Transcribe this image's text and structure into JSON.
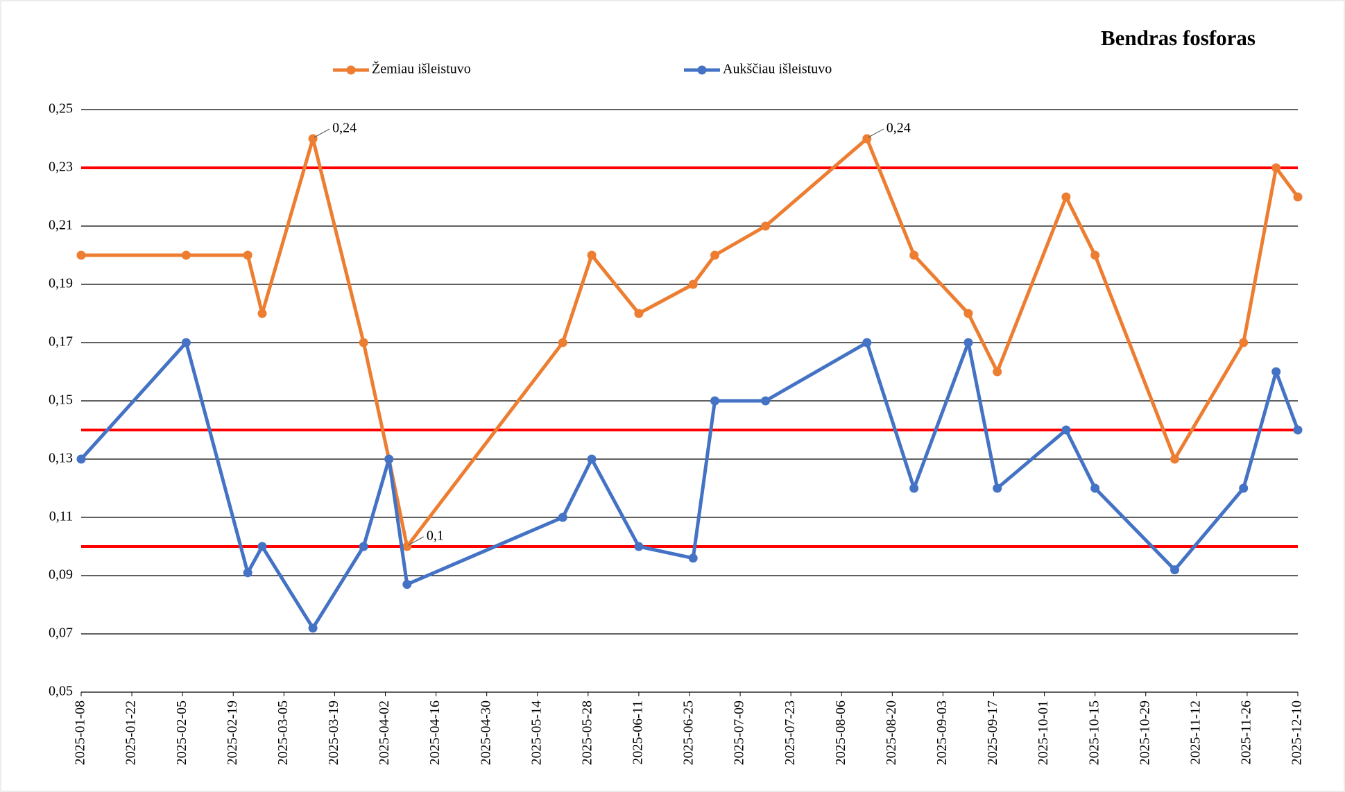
{
  "chart_data": {
    "type": "line",
    "title": "Bendras fosforas",
    "x": [
      "2025-01-08",
      "2025-02-06",
      "2025-02-23",
      "2025-02-27",
      "2025-03-13",
      "2025-03-27",
      "2025-04-03",
      "2025-04-08",
      "2025-05-21",
      "2025-05-29",
      "2025-06-11",
      "2025-06-26",
      "2025-07-02",
      "2025-07-16",
      "2025-08-13",
      "2025-08-26",
      "2025-09-10",
      "2025-09-18",
      "2025-10-07",
      "2025-10-15",
      "2025-11-06",
      "2025-11-25",
      "2025-12-04",
      "2025-12-10"
    ],
    "series": [
      {
        "name": "Žemiau išleistuvo",
        "color": "#ed7d31",
        "values": [
          0.2,
          0.2,
          0.2,
          0.18,
          0.24,
          0.17,
          0.13,
          0.1,
          0.17,
          0.2,
          0.18,
          0.19,
          0.2,
          0.21,
          0.24,
          0.2,
          0.18,
          0.16,
          0.22,
          0.2,
          0.13,
          0.17,
          0.23,
          0.22
        ],
        "value_labels": [
          null,
          null,
          null,
          null,
          "0,24",
          null,
          null,
          "0,1",
          null,
          null,
          null,
          null,
          null,
          null,
          "0,24",
          null,
          null,
          null,
          null,
          null,
          null,
          null,
          null,
          null
        ]
      },
      {
        "name": "Aukščiau išleistuvo",
        "color": "#4472c4",
        "values": [
          0.13,
          0.17,
          0.091,
          0.1,
          0.072,
          0.1,
          0.13,
          0.087,
          0.11,
          0.13,
          0.1,
          0.096,
          0.15,
          0.15,
          0.17,
          0.12,
          0.17,
          0.12,
          0.14,
          0.12,
          0.092,
          0.12,
          0.16,
          0.14
        ]
      }
    ],
    "reference_lines": [
      0.23,
      0.14,
      0.1
    ],
    "reference_color": "#ff0000",
    "xlim": [
      "2025-01-08",
      "2025-12-10"
    ],
    "xticks": [
      "2025-01-08",
      "2025-01-22",
      "2025-02-05",
      "2025-02-19",
      "2025-03-05",
      "2025-03-19",
      "2025-04-02",
      "2025-04-16",
      "2025-04-30",
      "2025-05-14",
      "2025-05-28",
      "2025-06-11",
      "2025-06-25",
      "2025-07-09",
      "2025-07-23",
      "2025-08-06",
      "2025-08-20",
      "2025-09-03",
      "2025-09-17",
      "2025-10-01",
      "2025-10-15",
      "2025-10-29",
      "2025-11-12",
      "2025-11-26",
      "2025-12-10"
    ],
    "ylim": [
      0.05,
      0.25
    ],
    "yticks": [
      {
        "value": 0.05,
        "label": "0,05"
      },
      {
        "value": 0.07,
        "label": "0,07"
      },
      {
        "value": 0.09,
        "label": "0,09"
      },
      {
        "value": 0.11,
        "label": "0,11"
      },
      {
        "value": 0.13,
        "label": "0,13"
      },
      {
        "value": 0.15,
        "label": "0,15"
      },
      {
        "value": 0.17,
        "label": "0,17"
      },
      {
        "value": 0.19,
        "label": "0,19"
      },
      {
        "value": 0.21,
        "label": "0,21"
      },
      {
        "value": 0.23,
        "label": "0,23"
      },
      {
        "value": 0.25,
        "label": "0,25"
      }
    ],
    "grid": true
  }
}
